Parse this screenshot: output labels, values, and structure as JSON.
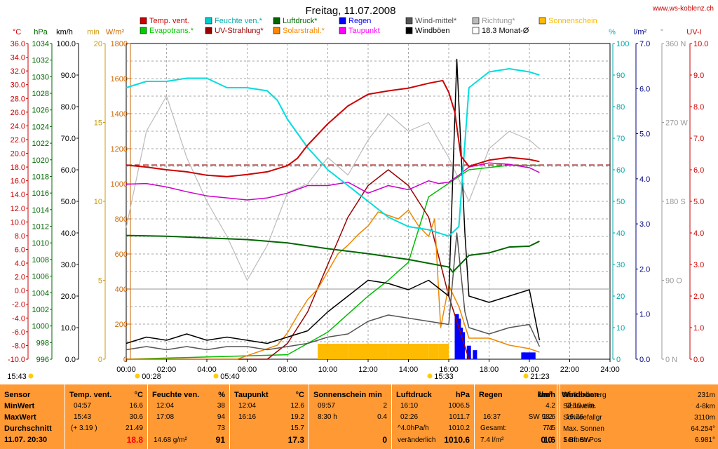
{
  "header": {
    "title": "Freitag, 11.07.2008",
    "site": "www.ws-koblenz.ch"
  },
  "legend": [
    {
      "label": "Temp. vent.",
      "color": "#cc0000"
    },
    {
      "label": "Evapotrans.*",
      "color": "#00cc00"
    },
    {
      "label": "Feuchte ven.*",
      "color": "#00cccc"
    },
    {
      "label": "UV-Strahlung*",
      "color": "#990000"
    },
    {
      "label": "Luftdruck*",
      "color": "#006600"
    },
    {
      "label": "Solarstrahl.*",
      "color": "#ff8800"
    },
    {
      "label": "Regen",
      "color": "#0000ff"
    },
    {
      "label": "Taupunkt",
      "color": "#ff00ff"
    },
    {
      "label": "Wind-mittel*",
      "color": "#555555"
    },
    {
      "label": "Windböen",
      "color": "#000000"
    },
    {
      "label": "Richtung*",
      "color": "#bbbbbb"
    },
    {
      "label": "18.3 Monat-Ø",
      "color": "#ffffff"
    },
    {
      "label": "Sonnenschein",
      "color": "#ffbb00"
    }
  ],
  "axis_units": [
    "°C",
    "hPa",
    "km/h",
    "min",
    "W/m²",
    "%",
    "l/m²",
    "°",
    "UV-I"
  ],
  "axes": {
    "temp": {
      "min": -10,
      "max": 36,
      "step": 2,
      "unit": "°C",
      "color": "#cc0000"
    },
    "hpa": {
      "min": 996,
      "max": 1034,
      "step": 2,
      "unit": "hPa",
      "color": "#006600"
    },
    "kmh": {
      "min": 0,
      "max": 100,
      "step": 10,
      "unit": "km/h",
      "color": "#000000"
    },
    "min": {
      "min": 0,
      "max": 20,
      "step": 5,
      "unit": "min",
      "color": "#cc9900"
    },
    "wm2": {
      "min": 0,
      "max": 1800,
      "step": 200,
      "unit": "W/m²",
      "color": "#cc6600"
    },
    "pct": {
      "min": 0,
      "max": 100,
      "step": 10,
      "unit": "%",
      "color": "#00aaaa"
    },
    "lm2": {
      "min": 0,
      "max": 7,
      "step": 1,
      "unit": "l/m²",
      "color": "#000080"
    },
    "dir": {
      "ticks": [
        {
          "v": 360,
          "l": "360 N"
        },
        {
          "v": 270,
          "l": "270 W"
        },
        {
          "v": 180,
          "l": "180 S"
        },
        {
          "v": 90,
          "l": "90 O"
        },
        {
          "v": 0,
          "l": "0 N"
        }
      ],
      "color": "#999999"
    },
    "uv": {
      "min": 0,
      "max": 10,
      "step": 1,
      "unit": "UV-I",
      "color": "#cc0000"
    }
  },
  "time_ticks": [
    "00:00",
    "02:00",
    "04:00",
    "06:00",
    "08:00",
    "10:00",
    "12:00",
    "14:00",
    "16:00",
    "18:00",
    "20:00",
    "22:00",
    "24:00"
  ],
  "time_markers": [
    "15:43",
    "00:28",
    "05:40",
    "15:33",
    "21:23"
  ],
  "chart_data": {
    "type": "line",
    "x_unit": "hours",
    "xlim": [
      0,
      24
    ],
    "monthly_avg_temp": 18.3,
    "series": [
      {
        "name": "Temp. vent.",
        "axis": "temp",
        "x": [
          0,
          1,
          2,
          3,
          4,
          5,
          6,
          7,
          8,
          8.5,
          9,
          10,
          11,
          12,
          13,
          14,
          15,
          15.7,
          16,
          16.3,
          16.6,
          17,
          18,
          19,
          20,
          20.5
        ],
        "y": [
          18.3,
          18.0,
          17.6,
          17.3,
          16.8,
          16.6,
          16.9,
          17.3,
          18.2,
          19.3,
          21.2,
          24.3,
          26.9,
          28.6,
          29.1,
          29.5,
          30.2,
          30.6,
          28.9,
          26.0,
          19.6,
          18.1,
          19.0,
          19.4,
          19.1,
          18.8
        ]
      },
      {
        "name": "Feuchte ven.*",
        "axis": "pct",
        "x": [
          0,
          1,
          2,
          3,
          4,
          5,
          6,
          7,
          7.5,
          8,
          9,
          10,
          11,
          12,
          13,
          14,
          15,
          16,
          16.5,
          17,
          18,
          19,
          20,
          20.5
        ],
        "y": [
          86,
          88,
          88,
          89,
          89,
          86,
          86,
          85,
          82,
          76,
          67,
          60,
          55,
          50,
          45,
          42,
          41,
          39,
          42,
          86,
          91,
          92,
          91,
          90
        ]
      },
      {
        "name": "Luftdruck*",
        "axis": "hpa",
        "x": [
          0,
          2,
          4,
          6,
          8,
          10,
          12,
          14,
          16,
          16.2,
          17,
          18,
          19,
          20,
          20.5
        ],
        "y": [
          1010.9,
          1010.8,
          1010.6,
          1010.4,
          1010.0,
          1009.3,
          1008.7,
          1008.0,
          1007.1,
          1006.5,
          1008.5,
          1008.8,
          1009.5,
          1009.6,
          1010.2
        ]
      },
      {
        "name": "Taupunkt",
        "axis": "temp",
        "x": [
          0,
          1,
          2,
          3,
          4,
          5,
          6,
          7,
          8,
          9,
          10,
          11,
          12,
          13,
          14,
          15,
          15.5,
          16,
          16.5,
          17,
          18,
          19,
          20,
          20.5
        ],
        "y": [
          15.5,
          15.6,
          15.1,
          14.4,
          13.8,
          13.5,
          13.2,
          13.5,
          14.2,
          15.3,
          15.3,
          15.8,
          14.2,
          15.3,
          14.7,
          16.0,
          15.6,
          15.8,
          16.8,
          18.0,
          18.6,
          18.4,
          17.9,
          17.2
        ]
      },
      {
        "name": "Solarstrahl.*",
        "axis": "wm2",
        "x": [
          0,
          5.5,
          6,
          7,
          7.5,
          8,
          8.5,
          9,
          9.5,
          10,
          10.5,
          11,
          11.5,
          12,
          12.5,
          13,
          13.5,
          14,
          14.5,
          15,
          15.3,
          15.6,
          16,
          16.5,
          17,
          18,
          19,
          20,
          20.5
        ],
        "y": [
          0,
          0,
          20,
          60,
          80,
          150,
          250,
          340,
          400,
          500,
          600,
          650,
          710,
          760,
          840,
          820,
          800,
          850,
          760,
          700,
          800,
          180,
          420,
          300,
          120,
          120,
          80,
          60,
          40
        ]
      },
      {
        "name": "Wind-mittel*",
        "axis": "kmh",
        "x": [
          0,
          1,
          2,
          3,
          4,
          5,
          6,
          7,
          8,
          9,
          10,
          11,
          12,
          13,
          14,
          15,
          16,
          16.4,
          16.8,
          17,
          18,
          19,
          20,
          20.5
        ],
        "y": [
          3,
          4,
          3,
          4,
          3,
          4,
          4,
          3,
          4,
          5,
          7,
          8,
          12,
          14,
          13,
          12,
          11,
          40,
          15,
          10,
          8,
          10,
          11,
          4
        ]
      },
      {
        "name": "Windböen",
        "axis": "kmh",
        "x": [
          0,
          1,
          2,
          3,
          4,
          5,
          6,
          7,
          8,
          9,
          10,
          11,
          12,
          13,
          14,
          15,
          16,
          16.4,
          16.8,
          17,
          18,
          19,
          20,
          20.5
        ],
        "y": [
          5,
          7,
          6,
          8,
          6,
          7,
          6,
          5,
          7,
          9,
          15,
          20,
          25,
          24,
          22,
          25,
          20,
          95,
          40,
          20,
          18,
          20,
          22,
          6
        ]
      },
      {
        "name": "Evapotrans.*",
        "axis": "lm2",
        "x": [
          0,
          8,
          9,
          10,
          11,
          12,
          13,
          14,
          15,
          16,
          17,
          18,
          19,
          20,
          20.5
        ],
        "y": [
          0,
          0.1,
          0.35,
          0.6,
          1.0,
          1.4,
          1.75,
          2.15,
          3.6,
          3.9,
          4.2,
          4.25,
          4.3,
          4.3,
          4.3
        ]
      },
      {
        "name": "Regen",
        "axis": "lm2",
        "x": [
          16.4,
          16.5,
          16.6,
          16.7,
          17.0,
          17.3,
          19.7,
          19.8,
          20.0,
          20.2
        ],
        "y": [
          1.0,
          0.9,
          0.7,
          0.6,
          0.3,
          0.2,
          0.15,
          0.15,
          0.15,
          0.15
        ]
      },
      {
        "name": "Richtung*",
        "axis": "dir",
        "x": [
          0,
          1,
          2,
          3,
          4,
          5,
          6,
          7,
          8,
          9,
          10,
          11,
          12,
          13,
          14,
          15,
          16,
          17,
          18,
          19,
          20,
          20.5
        ],
        "y": [
          150,
          260,
          300,
          230,
          180,
          140,
          90,
          130,
          190,
          200,
          230,
          210,
          250,
          280,
          260,
          270,
          230,
          180,
          240,
          260,
          250,
          240
        ]
      },
      {
        "name": "UV-Strahlung*",
        "axis": "uv",
        "x": [
          0,
          7,
          8,
          9,
          10,
          11,
          12,
          13,
          14,
          15,
          16,
          17
        ],
        "y": [
          0,
          0,
          0.5,
          1.5,
          3.0,
          4.5,
          5.5,
          6.0,
          5.5,
          4.5,
          2.0,
          0
        ]
      },
      {
        "name": "Sonnenschein",
        "axis": "min",
        "x": [
          0,
          9,
          9.5,
          10,
          11,
          12,
          13,
          14,
          15,
          15.5,
          16,
          20,
          20.5
        ],
        "y": [
          0,
          0,
          1,
          1,
          1,
          1,
          1,
          1,
          1,
          1,
          0,
          0,
          0
        ]
      }
    ]
  },
  "table": {
    "sensor": {
      "header": "Sensor",
      "rows": [
        "MinWert",
        "MaxWert",
        "Durchschnitt"
      ],
      "date": "11.07. 20:30"
    },
    "columns": [
      {
        "header": "Temp. vent.",
        "unit": "°C",
        "min_time": "04:57",
        "min": "16.6",
        "max_time": "15:43",
        "max": "30.6",
        "avg_note": "(+ 3.19 )",
        "avg": "21.49",
        "current": "18.8"
      },
      {
        "header": "Feuchte ven.",
        "unit": "%",
        "min_time": "12:04",
        "min": "38",
        "max_time": "17:08",
        "max": "94",
        "avg_note": "",
        "avg": "73",
        "extra": "14.68 g/m²",
        "current": "91"
      },
      {
        "header": "Taupunkt",
        "unit": "°C",
        "min_time": "12:04",
        "min": "12.6",
        "max_time": "16:16",
        "max": "19.2",
        "avg_note": "",
        "avg": "15.7",
        "current": "17.3"
      },
      {
        "header": "Sonnenschein min",
        "unit": "",
        "min_time": "09:57",
        "min": "2",
        "max_time": "8:30 h",
        "max": "0.4",
        "avg_note": "",
        "avg": "",
        "current": "0"
      },
      {
        "header": "Luftdruck",
        "unit": "hPa",
        "min_time": "16:10",
        "min": "1006.5",
        "max_time": "02:26",
        "max": "1011.7",
        "avg_note": "^4.0hPa/h",
        "avg": "1010.2",
        "extra": "veränderlich",
        "current": "1010.6"
      },
      {
        "header": "Regen",
        "unit": "l/m²",
        "min_time": "",
        "min": "",
        "max_time": "16:37",
        "max": "1.2",
        "avg_note": "Gesamt:",
        "avg": "7.4",
        "extra": "7.4 l/m²",
        "current": "0.0"
      },
      {
        "header": "Windböen",
        "unit": "km/h",
        "min_time": "Ø 10 min.",
        "min": "4.2",
        "max_time": "16:26",
        "max": "SW 98.6",
        "avg_note": "",
        "avg": "7.5",
        "extra": "1 Bft SW",
        "current": "1.6"
      }
    ],
    "info": [
      {
        "label": "Wolkenunterg",
        "value": "231m"
      },
      {
        "label": "Sichtweite",
        "value": "4-8km"
      },
      {
        "label": "Schneefallgr",
        "value": "3110m"
      },
      {
        "label": "Max. Sonnen",
        "value": "64.254°"
      },
      {
        "label": "Sonnen Pos",
        "value": "6.981°"
      }
    ]
  }
}
